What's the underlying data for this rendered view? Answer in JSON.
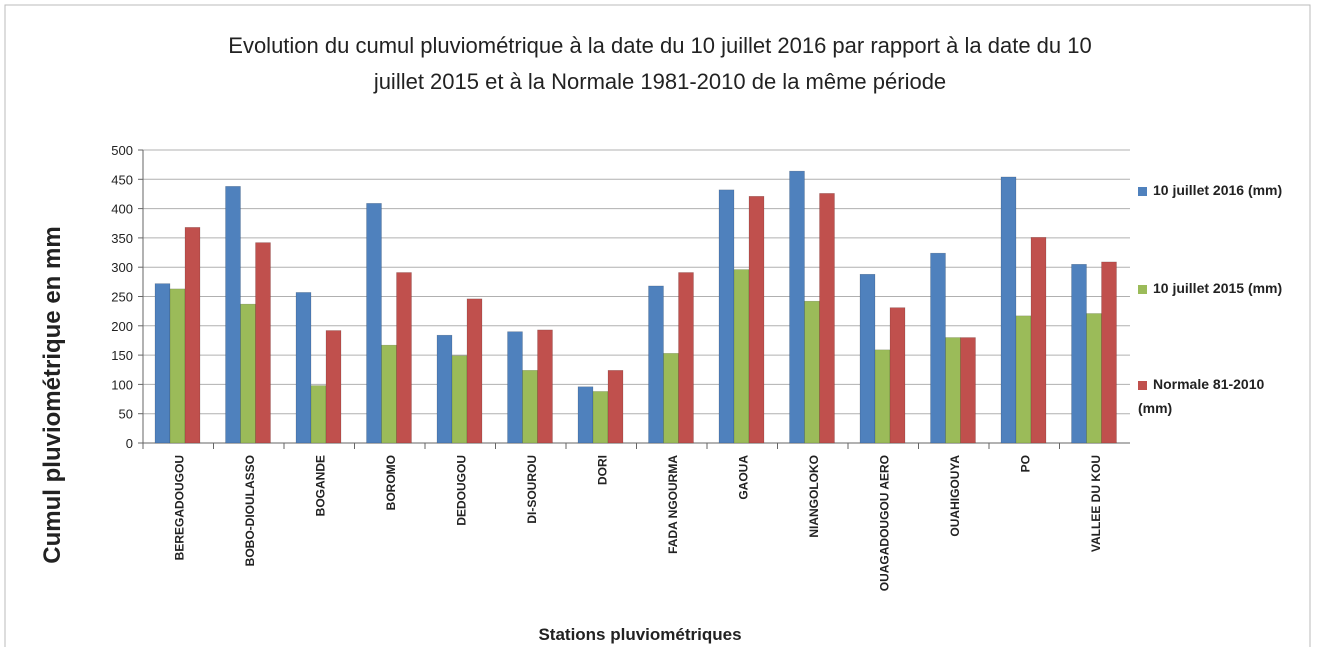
{
  "chart_data": {
    "type": "bar",
    "title": "Evolution du cumul pluviométrique à la date du 10 juillet 2016 par rapport  à la date du 10 juillet 2015 et à la Normale 1981-2010 de la même période",
    "x_label": "Stations pluviométriques",
    "y_label": "Cumul pluviométrique  en mm",
    "categories": [
      "BEREGADOUGOU",
      "BOBO-DIOULASSO",
      "BOGANDE",
      "BOROMO",
      "DEDOUGOU",
      "DI-SOUROU",
      "DORI",
      "FADA NGOURMA",
      "GAOUA",
      "NIANGOLOKO",
      "OUAGADOUGOU AERO",
      "OUAHIGOUYA",
      "PO",
      "VALLEE DU KOU"
    ],
    "series": [
      {
        "name": "10 juillet 2016 (mm)",
        "color": "#4f81bd",
        "values": [
          272,
          438,
          257,
          409,
          184,
          190,
          96,
          268,
          432,
          464,
          288,
          324,
          454,
          305
        ]
      },
      {
        "name": "10 juillet 2015 (mm)",
        "color": "#9bbb59",
        "values": [
          263,
          237,
          98,
          167,
          149,
          124,
          88,
          153,
          296,
          242,
          159,
          180,
          217,
          221
        ]
      },
      {
        "name": "Normale 81-2010 (mm)",
        "color": "#c0504d",
        "values": [
          368,
          342,
          192,
          291,
          246,
          193,
          124,
          291,
          421,
          426,
          231,
          180,
          351,
          309
        ]
      }
    ],
    "ylim": [
      0,
      500
    ],
    "yticks": [
      0,
      50,
      100,
      150,
      200,
      250,
      300,
      350,
      400,
      450,
      500
    ],
    "grid": true,
    "legend": "right"
  }
}
